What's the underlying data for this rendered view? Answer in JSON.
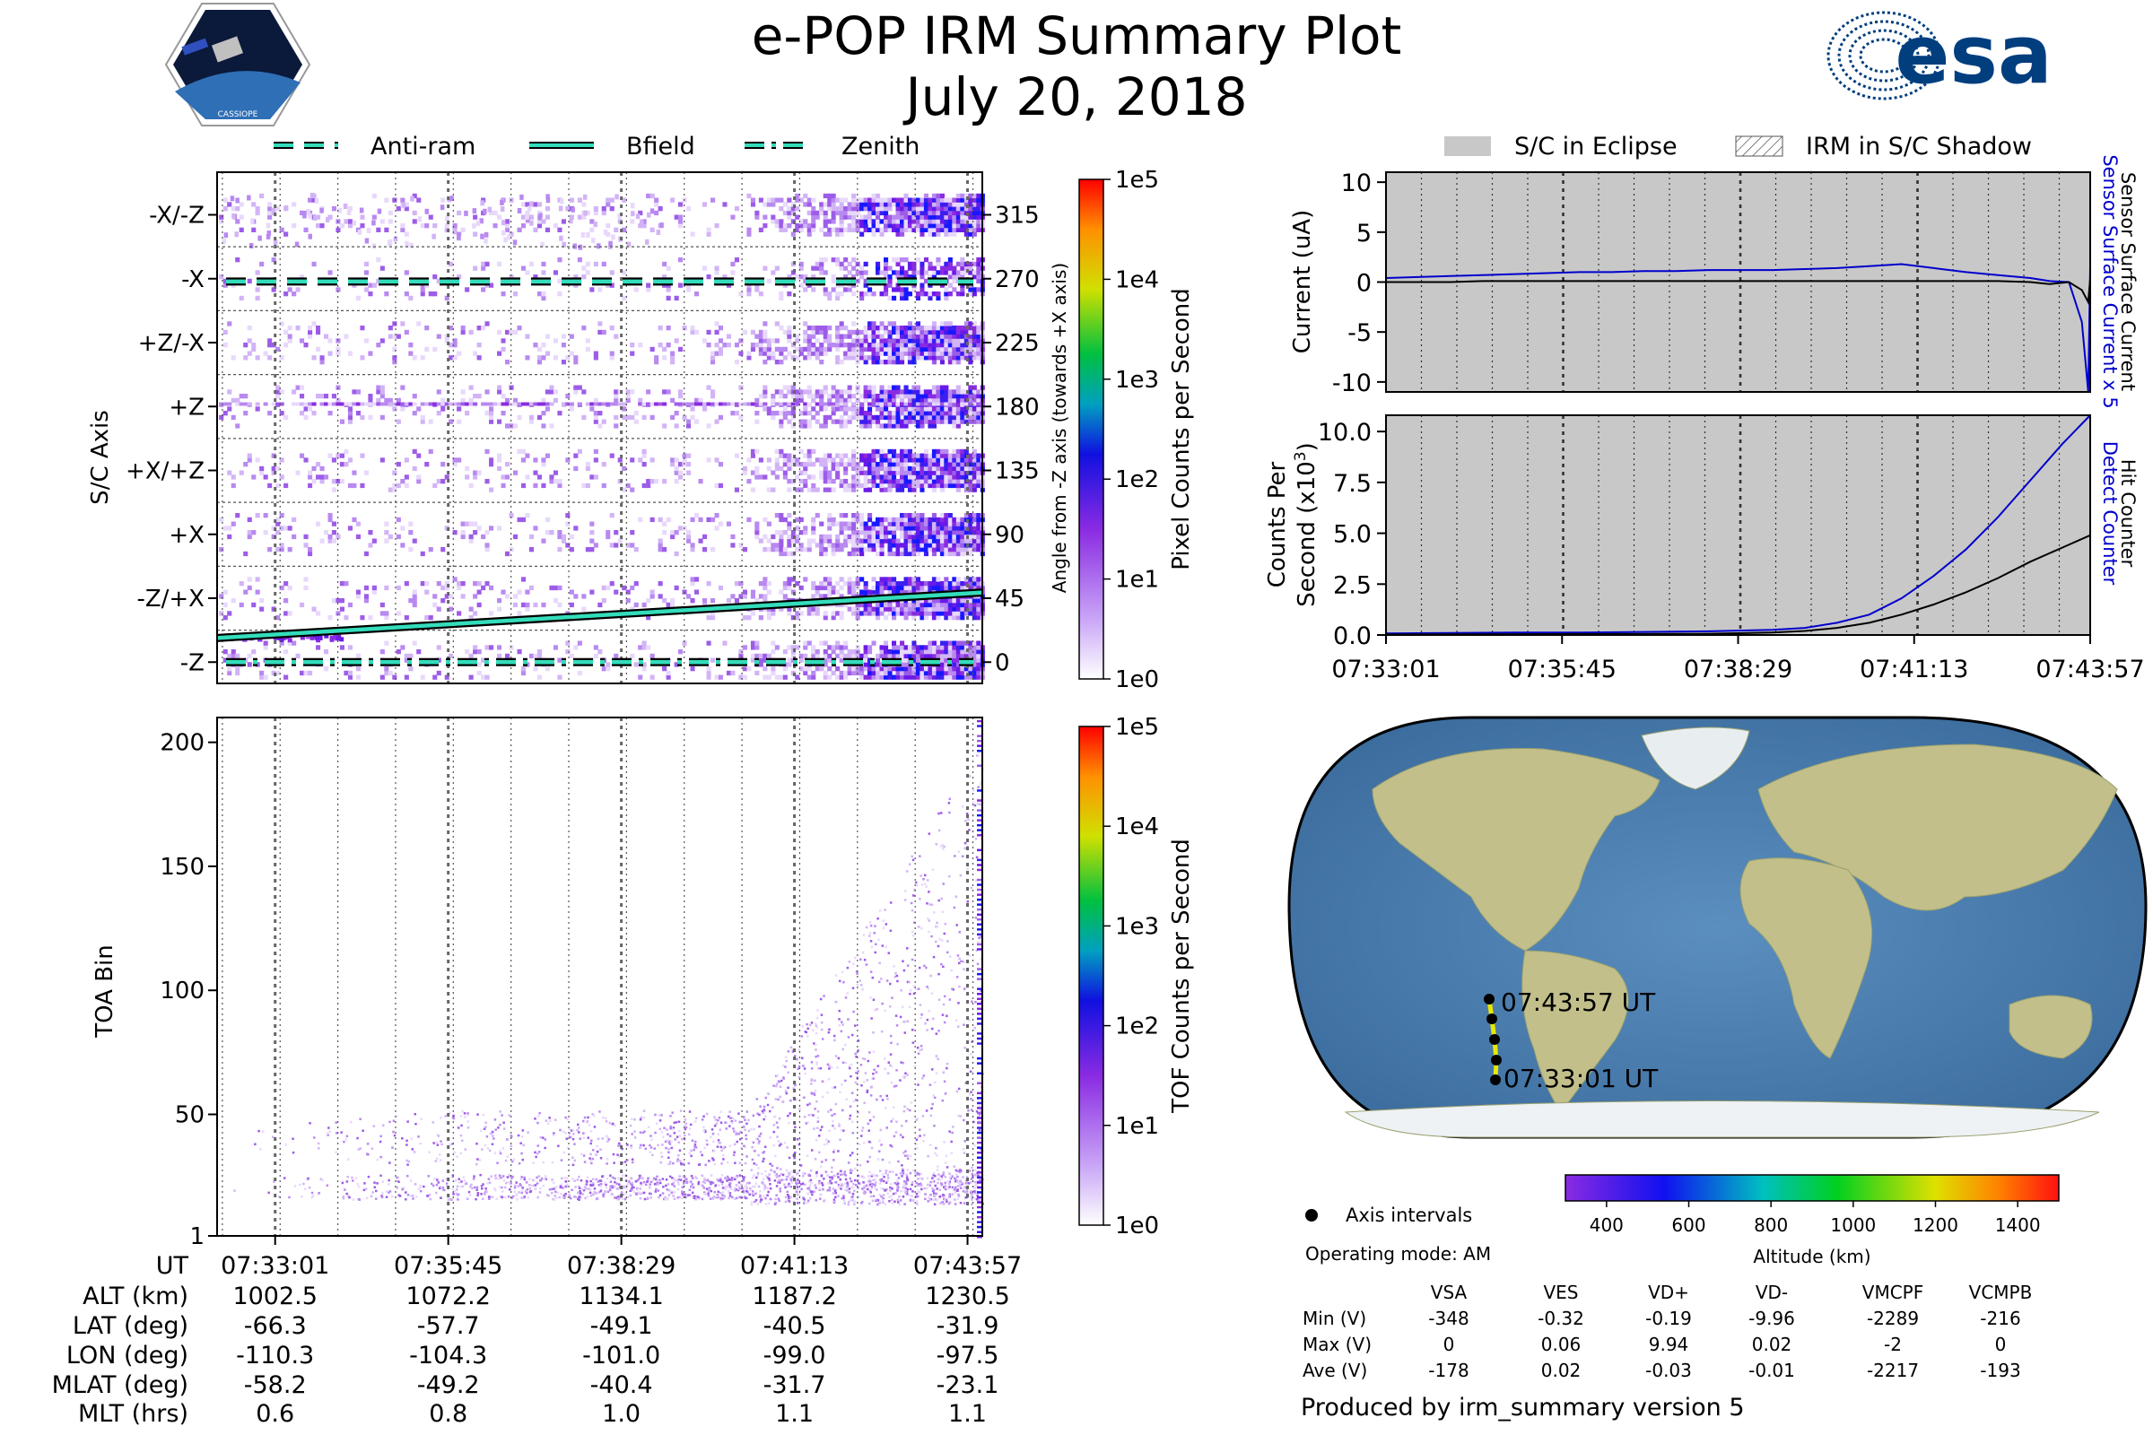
{
  "header": {
    "title": "e-POP IRM Summary Plot",
    "date": "July 20, 2018",
    "mission_logo": "cassiope-mission-patch",
    "mission_logo_text": "CASSIOPE",
    "agency_logo_text": "esa"
  },
  "chart_data": [
    {
      "type": "heatmap",
      "name": "pixel-counts",
      "ylabel": "S/C Axis",
      "y_tick_labels": [
        "-X/-Z",
        "-X",
        "+Z/-X",
        "+Z",
        "+X/+Z",
        "+X",
        "-Z/+X",
        "-Z"
      ],
      "y2label": "Angle from -Z axis (towards +X axis)",
      "y2_ticks": [
        315,
        270,
        225,
        180,
        135,
        90,
        45,
        0
      ],
      "ylim": [
        -15,
        345
      ],
      "legend": [
        {
          "label": "Anti-ram",
          "style": "dashed"
        },
        {
          "label": "Bfield",
          "style": "solid"
        },
        {
          "label": "Zenith",
          "style": "dashdot"
        }
      ],
      "lines": {
        "anti_ram_angle": 268,
        "zenith_angle": 0,
        "bfield_angle_start": 17,
        "bfield_angle_end": 49
      },
      "colorbar": {
        "label": "Pixel Counts per Second",
        "scale": "log",
        "ticks": [
          "1e0",
          "1e1",
          "1e2",
          "1e3",
          "1e4",
          "1e5"
        ]
      }
    },
    {
      "type": "heatmap",
      "name": "tof-counts",
      "ylabel": "TOA Bin",
      "y_ticks": [
        1,
        50,
        100,
        150,
        200
      ],
      "ylim": [
        1,
        210
      ],
      "colorbar": {
        "label": "TOF Counts per Second",
        "scale": "log",
        "ticks": [
          "1e0",
          "1e1",
          "1e2",
          "1e3",
          "1e4",
          "1e5"
        ]
      }
    },
    {
      "type": "line",
      "name": "current",
      "ylabel": "Current (uA)",
      "ylim": [
        -11,
        11
      ],
      "y_ticks": [
        10,
        5,
        0,
        -5,
        -10
      ],
      "right_labels": [
        {
          "text": "Sensor Surface Current x 5",
          "color": "#0000cc"
        },
        {
          "text": "Sensor Surface Current",
          "color": "#000000"
        }
      ],
      "legend": [
        {
          "label": "S/C in Eclipse",
          "style": "fill",
          "color": "#c8c8c8"
        },
        {
          "label": "IRM in S/C Shadow",
          "style": "hatch"
        }
      ],
      "x_minutes": [
        0,
        0.5,
        1,
        1.5,
        2,
        2.5,
        3,
        3.5,
        4,
        4.5,
        5,
        5.5,
        6,
        6.5,
        7,
        7.5,
        8,
        8.5,
        9,
        9.5,
        10,
        10.3,
        10.6,
        10.8,
        10.9,
        10.93
      ],
      "series": [
        {
          "name": "Sensor Surface Current x 5",
          "color": "#0000cc",
          "values": [
            0.4,
            0.5,
            0.6,
            0.7,
            0.8,
            0.9,
            1.0,
            1.0,
            1.1,
            1.1,
            1.2,
            1.2,
            1.2,
            1.3,
            1.4,
            1.6,
            1.8,
            1.4,
            1.0,
            0.7,
            0.4,
            0.1,
            0.0,
            -4.0,
            -11.0,
            1.5
          ]
        },
        {
          "name": "Sensor Surface Current",
          "color": "#000000",
          "values": [
            0.0,
            0.0,
            0.0,
            0.1,
            0.1,
            0.1,
            0.1,
            0.1,
            0.1,
            0.1,
            0.1,
            0.1,
            0.1,
            0.1,
            0.1,
            0.1,
            0.1,
            0.1,
            0.1,
            0.1,
            0.0,
            -0.2,
            0.0,
            -0.8,
            -2.0,
            0.3
          ]
        }
      ]
    },
    {
      "type": "line",
      "name": "counts",
      "ylabel": "Counts Per Second (x10³)",
      "ylim": [
        0,
        10.8
      ],
      "y_ticks": [
        "10.0",
        "7.5",
        "5.0",
        "2.5",
        "0.0"
      ],
      "x_tick_labels": [
        "07:33:01",
        "07:35:45",
        "07:38:29",
        "07:41:13",
        "07:43:57"
      ],
      "right_labels": [
        {
          "text": "Detect Counter",
          "color": "#0000cc"
        },
        {
          "text": "Hit Counter",
          "color": "#000000"
        }
      ],
      "x_minutes": [
        0,
        1,
        2,
        3,
        4,
        5,
        6,
        6.5,
        7,
        7.5,
        8,
        8.5,
        9,
        9.5,
        10,
        10.5,
        10.93
      ],
      "series": [
        {
          "name": "Detect Counter",
          "color": "#0000cc",
          "values": [
            0.08,
            0.1,
            0.12,
            0.12,
            0.15,
            0.18,
            0.25,
            0.35,
            0.6,
            1.0,
            1.8,
            2.9,
            4.2,
            5.8,
            7.6,
            9.4,
            10.8
          ]
        },
        {
          "name": "Hit Counter",
          "color": "#000000",
          "values": [
            0.02,
            0.03,
            0.04,
            0.05,
            0.05,
            0.06,
            0.12,
            0.2,
            0.35,
            0.6,
            1.0,
            1.5,
            2.1,
            2.8,
            3.6,
            4.3,
            4.9
          ]
        }
      ]
    }
  ],
  "time_table": {
    "row_labels": [
      "UT",
      "ALT (km)",
      "LAT (deg)",
      "LON (deg)",
      "MLAT (deg)",
      "MLT (hrs)"
    ],
    "columns": [
      [
        "07:33:01",
        "1002.5",
        "-66.3",
        "-110.3",
        "-58.2",
        "0.6"
      ],
      [
        "07:35:45",
        "1072.2",
        "-57.7",
        "-104.3",
        "-49.2",
        "0.8"
      ],
      [
        "07:38:29",
        "1134.1",
        "-49.1",
        "-101.0",
        "-40.4",
        "1.0"
      ],
      [
        "07:41:13",
        "1187.2",
        "-40.5",
        "-99.0",
        "-31.7",
        "1.1"
      ],
      [
        "07:43:57",
        "1230.5",
        "-31.9",
        "-97.5",
        "-23.1",
        "1.1"
      ]
    ]
  },
  "map": {
    "start_label": "07:33:01 UT",
    "end_label": "07:43:57 UT",
    "legend_label": "Axis intervals",
    "operating_mode": "Operating mode: AM",
    "altitude_colorbar": {
      "label": "Altitude (km)",
      "ticks": [
        400,
        600,
        800,
        1000,
        1200,
        1400
      ],
      "range": [
        300,
        1500
      ]
    }
  },
  "voltage_table": {
    "headers": [
      "VSA",
      "VES",
      "VD+",
      "VD-",
      "VMCPF",
      "VCMPB"
    ],
    "rows": [
      {
        "label": "Min (V)",
        "values": [
          "-348",
          "-0.32",
          "-0.19",
          "-9.96",
          "-2289",
          "-216"
        ]
      },
      {
        "label": "Max (V)",
        "values": [
          "0",
          "0.06",
          "9.94",
          "0.02",
          "-2",
          "0"
        ]
      },
      {
        "label": "Ave (V)",
        "values": [
          "-178",
          "0.02",
          "-0.03",
          "-0.01",
          "-2217",
          "-193"
        ]
      }
    ]
  },
  "footer": "Produced by irm_summary version 5",
  "colors": {
    "eclipse_fill": "#c8c8c8",
    "blue_line": "#0000cc",
    "cyan_line": "#33ddbb",
    "esa_blue": "#003e7e"
  }
}
